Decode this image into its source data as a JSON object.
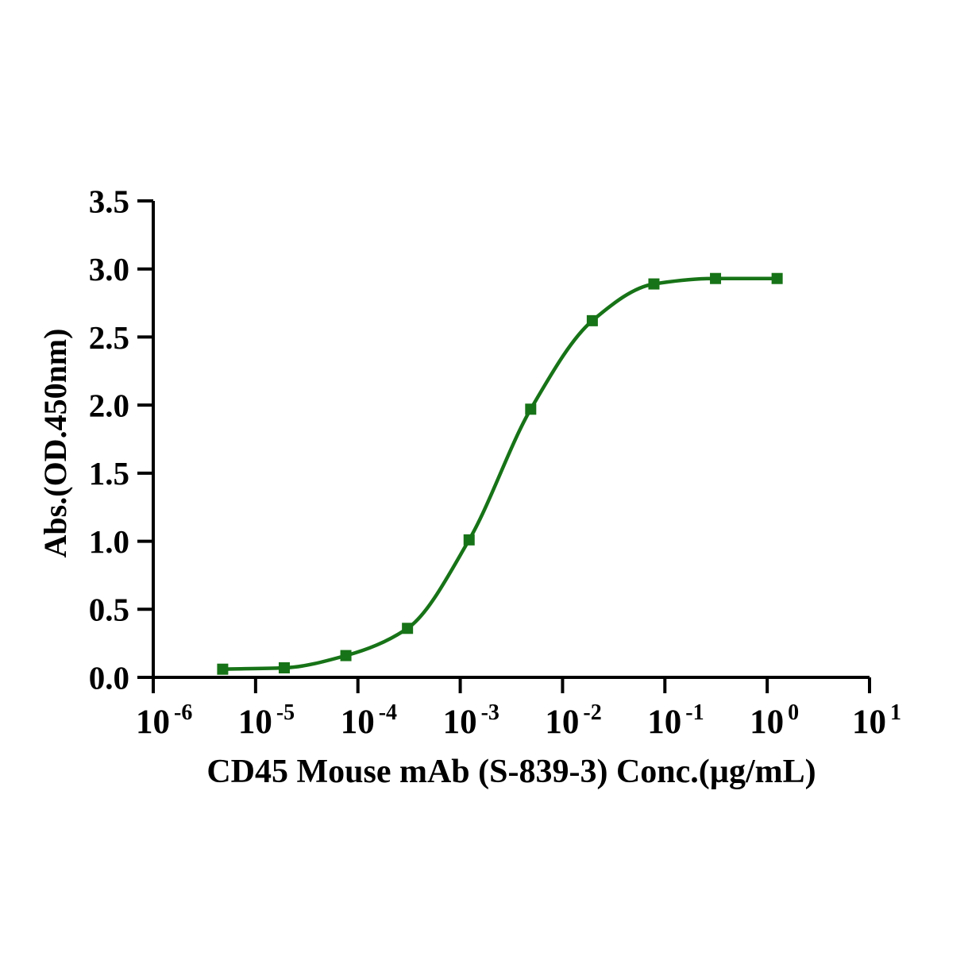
{
  "chart_data": {
    "type": "line",
    "subtype": "scatter with sigmoidal dose-response fit (ELISA binding curve)",
    "title": "",
    "xlabel": "CD45 Mouse mAb (S-839-3) Conc.(µg/mL)",
    "ylabel": "Abs.(OD.450nm)",
    "x_scale": "log10",
    "xlim_log10": [
      -6,
      1
    ],
    "ylim": [
      0,
      3.5
    ],
    "x_tick_base": "10",
    "x_tick_exponents": [
      "-6",
      "-5",
      "-4",
      "-3",
      "-2",
      "-1",
      "0",
      "1"
    ],
    "y_ticks": [
      "0.0",
      "0.5",
      "1.0",
      "1.5",
      "2.0",
      "2.5",
      "3.0",
      "3.5"
    ],
    "grid": false,
    "legend": "none",
    "colors": {
      "axis": "#000000",
      "text": "#000000",
      "series": "#177317",
      "background": "#ffffff"
    },
    "series": [
      {
        "marker": "filled-square",
        "line": "smooth sigmoid curve through points",
        "points": [
          {
            "x": 4.768e-06,
            "y": 0.06
          },
          {
            "x": 1.907e-05,
            "y": 0.07
          },
          {
            "x": 7.629e-05,
            "y": 0.16
          },
          {
            "x": 0.0003052,
            "y": 0.36
          },
          {
            "x": 0.001221,
            "y": 1.01
          },
          {
            "x": 0.004883,
            "y": 1.97
          },
          {
            "x": 0.01953,
            "y": 2.62
          },
          {
            "x": 0.07813,
            "y": 2.89
          },
          {
            "x": 0.3125,
            "y": 2.93
          },
          {
            "x": 1.25,
            "y": 2.93
          }
        ]
      }
    ]
  }
}
